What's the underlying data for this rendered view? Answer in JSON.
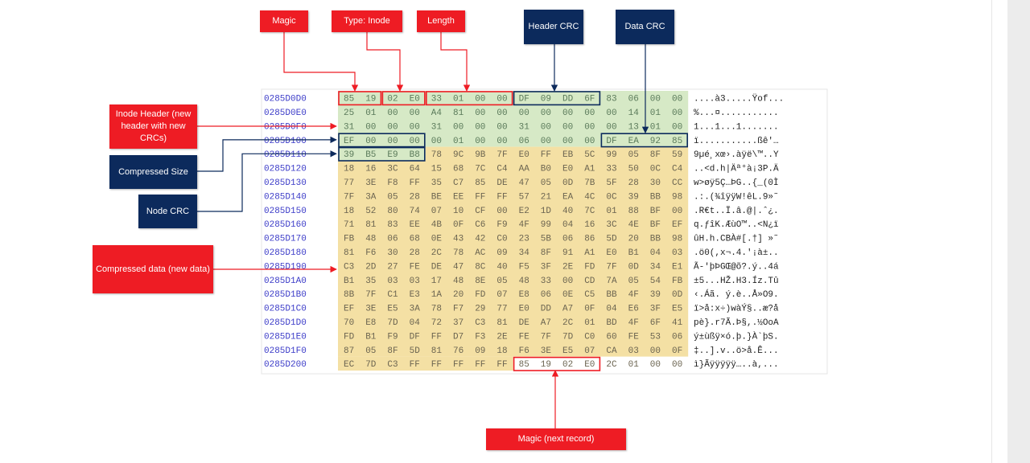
{
  "labels": {
    "magic": "Magic",
    "type": "Type: Inode",
    "length": "Length",
    "header_crc": "Header CRC",
    "data_crc": "Data CRC",
    "inode_header": "Inode Header (new header with new CRCs)",
    "compressed_size": "Compressed Size",
    "node_crc": "Node CRC",
    "compressed_data": "Compressed data (new data)",
    "magic_next": "Magic (next record)"
  },
  "rows": [
    {
      "address": "0285D0D0",
      "bytes": [
        "85",
        "19",
        "02",
        "E0",
        "33",
        "01",
        "00",
        "00",
        "DF",
        "09",
        "DD",
        "6F",
        "83",
        "06",
        "00",
        "00"
      ],
      "ascii": "....à3.....Ÿof..."
    },
    {
      "address": "0285D0E0",
      "bytes": [
        "25",
        "01",
        "00",
        "00",
        "A4",
        "81",
        "00",
        "00",
        "00",
        "00",
        "00",
        "00",
        "00",
        "14",
        "01",
        "00"
      ],
      "ascii": "%...¤..........."
    },
    {
      "address": "0285D0F0",
      "bytes": [
        "31",
        "00",
        "00",
        "00",
        "31",
        "00",
        "00",
        "00",
        "31",
        "00",
        "00",
        "00",
        "00",
        "13",
        "01",
        "00"
      ],
      "ascii": "1...1...1......."
    },
    {
      "address": "0285D100",
      "bytes": [
        "EF",
        "00",
        "00",
        "00",
        "00",
        "01",
        "00",
        "00",
        "06",
        "00",
        "00",
        "00",
        "DF",
        "EA",
        "92",
        "85"
      ],
      "ascii": "ï...........ßê'…"
    },
    {
      "address": "0285D110",
      "bytes": [
        "39",
        "B5",
        "E9",
        "B8",
        "78",
        "9C",
        "9B",
        "7F",
        "E0",
        "FF",
        "EB",
        "5C",
        "99",
        "05",
        "8F",
        "59"
      ],
      "ascii": "9µé¸xœ›.àÿë\\™..Y"
    },
    {
      "address": "0285D120",
      "bytes": [
        "18",
        "16",
        "3C",
        "64",
        "15",
        "68",
        "7C",
        "C4",
        "AA",
        "B0",
        "E0",
        "A1",
        "33",
        "50",
        "0C",
        "C4"
      ],
      "ascii": "..<d.h|Äª°à¡3P.Ä"
    },
    {
      "address": "0285D130",
      "bytes": [
        "77",
        "3E",
        "F8",
        "FF",
        "35",
        "C7",
        "85",
        "DE",
        "47",
        "05",
        "0D",
        "7B",
        "5F",
        "28",
        "30",
        "CC"
      ],
      "ascii": "w>øÿ5Ç…ÞG..{_(0Ì"
    },
    {
      "address": "0285D140",
      "bytes": [
        "7F",
        "3A",
        "05",
        "28",
        "BE",
        "EE",
        "FF",
        "FF",
        "57",
        "21",
        "EA",
        "4C",
        "0C",
        "39",
        "BB",
        "98"
      ],
      "ascii": ".:.(¾îÿÿW!êL.9»˜"
    },
    {
      "address": "0285D150",
      "bytes": [
        "18",
        "52",
        "80",
        "74",
        "07",
        "10",
        "CF",
        "00",
        "E2",
        "1D",
        "40",
        "7C",
        "01",
        "88",
        "BF",
        "00"
      ],
      "ascii": ".R€t..Ï.â.@|.ˆ¿."
    },
    {
      "address": "0285D160",
      "bytes": [
        "71",
        "81",
        "83",
        "EE",
        "4B",
        "0F",
        "C6",
        "F9",
        "4F",
        "99",
        "04",
        "16",
        "3C",
        "4E",
        "BF",
        "EF"
      ],
      "ascii": "q.ƒîK.ÆùO™..<N¿ï"
    },
    {
      "address": "0285D170",
      "bytes": [
        "FB",
        "48",
        "06",
        "68",
        "0E",
        "43",
        "42",
        "C0",
        "23",
        "5B",
        "06",
        "86",
        "5D",
        "20",
        "BB",
        "98"
      ],
      "ascii": "ûH.h.CBÀ#[.†] »˜"
    },
    {
      "address": "0285D180",
      "bytes": [
        "81",
        "F6",
        "30",
        "28",
        "2C",
        "78",
        "AC",
        "09",
        "34",
        "8F",
        "91",
        "A1",
        "E0",
        "B1",
        "04",
        "03"
      ],
      "ascii": ".ö0(,x¬.4.'¡à±.."
    },
    {
      "address": "0285D190",
      "bytes": [
        "C3",
        "2D",
        "27",
        "FE",
        "DE",
        "47",
        "8C",
        "40",
        "F5",
        "3F",
        "2E",
        "FD",
        "7F",
        "0D",
        "34",
        "E1"
      ],
      "ascii": "Ã-'þÞGŒ@õ?.ý..4á"
    },
    {
      "address": "0285D1A0",
      "bytes": [
        "B1",
        "35",
        "03",
        "03",
        "17",
        "48",
        "8E",
        "05",
        "48",
        "33",
        "00",
        "CD",
        "7A",
        "05",
        "54",
        "FB"
      ],
      "ascii": "±5...HŽ.H3.Íz.Tû"
    },
    {
      "address": "0285D1B0",
      "bytes": [
        "8B",
        "7F",
        "C1",
        "E3",
        "1A",
        "20",
        "FD",
        "07",
        "E8",
        "06",
        "0E",
        "C5",
        "BB",
        "4F",
        "39",
        "0D"
      ],
      "ascii": "‹.Áã. ý.è..Å»O9."
    },
    {
      "address": "0285D1C0",
      "bytes": [
        "EF",
        "3E",
        "E5",
        "3A",
        "78",
        "F7",
        "29",
        "77",
        "E0",
        "DD",
        "A7",
        "0F",
        "04",
        "E6",
        "3F",
        "E5"
      ],
      "ascii": "ï>å:x÷)wàÝ§..æ?å"
    },
    {
      "address": "0285D1D0",
      "bytes": [
        "70",
        "E8",
        "7D",
        "04",
        "72",
        "37",
        "C3",
        "81",
        "DE",
        "A7",
        "2C",
        "01",
        "BD",
        "4F",
        "6F",
        "41"
      ],
      "ascii": "pè}.r7Ã.Þ§,.½OoA"
    },
    {
      "address": "0285D1E0",
      "bytes": [
        "FD",
        "B1",
        "F9",
        "DF",
        "FF",
        "D7",
        "F3",
        "2E",
        "FE",
        "7F",
        "7D",
        "C0",
        "60",
        "FE",
        "53",
        "06"
      ],
      "ascii": "ý±ùßÿ×ó.þ.}À`þS."
    },
    {
      "address": "0285D1F0",
      "bytes": [
        "87",
        "05",
        "8F",
        "5D",
        "81",
        "76",
        "09",
        "18",
        "F6",
        "3E",
        "E5",
        "07",
        "CA",
        "03",
        "00",
        "0F"
      ],
      "ascii": "‡..].v..ö>å.Ê..."
    },
    {
      "address": "0285D200",
      "bytes": [
        "EC",
        "7D",
        "C3",
        "FF",
        "FF",
        "FF",
        "FF",
        "FF",
        "85",
        "19",
        "02",
        "E0",
        "2C",
        "01",
        "00",
        "00"
      ],
      "ascii": "ì}Ãÿÿÿÿÿ…..à,..."
    }
  ]
}
